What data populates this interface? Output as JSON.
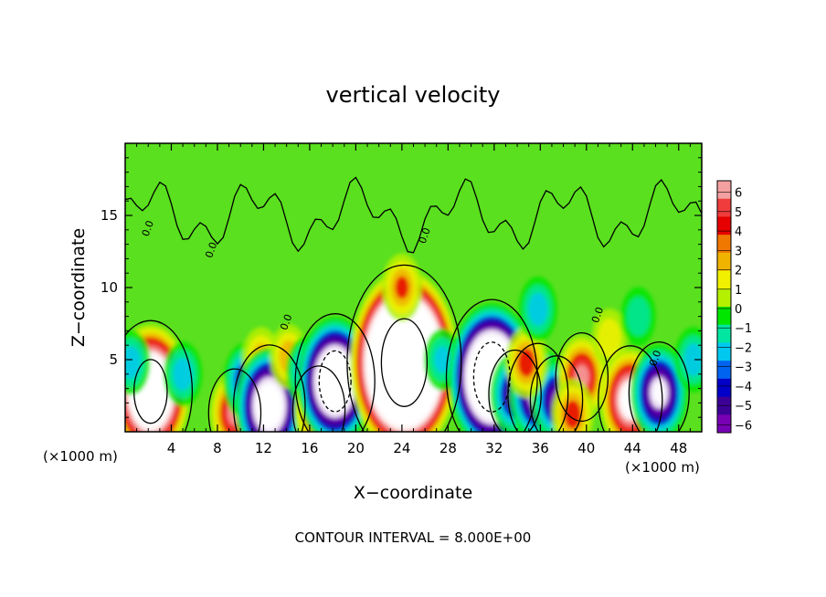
{
  "chart_data": {
    "type": "heatmap",
    "title": "vertical velocity",
    "xlabel": "X−coordinate",
    "ylabel": "Z−coordinate",
    "x_unit_left": "(×1000 m)",
    "x_unit_right": "(×1000 m)",
    "footer": "CONTOUR INTERVAL = 8.000E+00",
    "xlim": [
      0,
      50
    ],
    "ylim": [
      0,
      20
    ],
    "x_ticks": [
      4,
      8,
      12,
      16,
      20,
      24,
      28,
      32,
      36,
      40,
      44,
      48
    ],
    "x_tick_labels": [
      "4",
      "8",
      "12",
      "16",
      "20",
      "24",
      "28",
      "32",
      "36",
      "40",
      "44",
      "48"
    ],
    "y_ticks": [
      5,
      10,
      15
    ],
    "y_tick_labels": [
      "5",
      "10",
      "15"
    ],
    "colorbar": {
      "min": -6,
      "max": 6,
      "tick_labels": [
        "6",
        "5",
        "4",
        "3",
        "2",
        "1",
        "0",
        "−1",
        "−2",
        "−3",
        "−4",
        "−5",
        "−6"
      ],
      "colors": [
        "#f4a0a0",
        "#f03c3c",
        "#e60000",
        "#f07800",
        "#f0b400",
        "#f0f000",
        "#b4f000",
        "#00e600",
        "#00e6a0",
        "#00c8f0",
        "#0064f0",
        "#0000c8",
        "#3c0096",
        "#7800b4"
      ]
    },
    "contour_label": "0.0",
    "features": [
      {
        "x": 2.2,
        "z": 2.8,
        "w": 14
      },
      {
        "x": 5,
        "z": 4,
        "w": -3
      },
      {
        "x": 9.5,
        "z": 1.3,
        "w": 6
      },
      {
        "x": 10.5,
        "z": 3.5,
        "w": -5
      },
      {
        "x": 11.8,
        "z": 5,
        "w": 3
      },
      {
        "x": 12.5,
        "z": 1.8,
        "w": -11
      },
      {
        "x": 14.2,
        "z": 5.2,
        "w": 3
      },
      {
        "x": 15.8,
        "z": 4.2,
        "w": -4
      },
      {
        "x": 16.8,
        "z": 1.5,
        "w": 6
      },
      {
        "x": 18.2,
        "z": 3.5,
        "w": -13
      },
      {
        "x": 24.2,
        "z": 4.8,
        "w": 22
      },
      {
        "x": 24,
        "z": 10,
        "w": 3.5
      },
      {
        "x": 27.5,
        "z": 5,
        "w": -2.5
      },
      {
        "x": 31.8,
        "z": 3.8,
        "w": -16
      },
      {
        "x": 33.8,
        "z": 2.6,
        "w": -6
      },
      {
        "x": 35.8,
        "z": 2.6,
        "w": -8
      },
      {
        "x": 37.4,
        "z": 2.2,
        "w": -6
      },
      {
        "x": 34.8,
        "z": 4.8,
        "w": 4
      },
      {
        "x": 35.8,
        "z": 8.5,
        "w": -3
      },
      {
        "x": 39.6,
        "z": 3.8,
        "w": 6
      },
      {
        "x": 38.8,
        "z": 1.2,
        "w": 4
      },
      {
        "x": 42,
        "z": 6.5,
        "w": 2
      },
      {
        "x": 43.8,
        "z": 2.2,
        "w": 9
      },
      {
        "x": 46.3,
        "z": 2.7,
        "w": -8
      },
      {
        "x": 44.5,
        "z": 8,
        "w": -2
      },
      {
        "x": 49.3,
        "z": 5,
        "w": -3
      },
      {
        "x": 0.5,
        "z": 4.8,
        "w": -3
      }
    ]
  }
}
